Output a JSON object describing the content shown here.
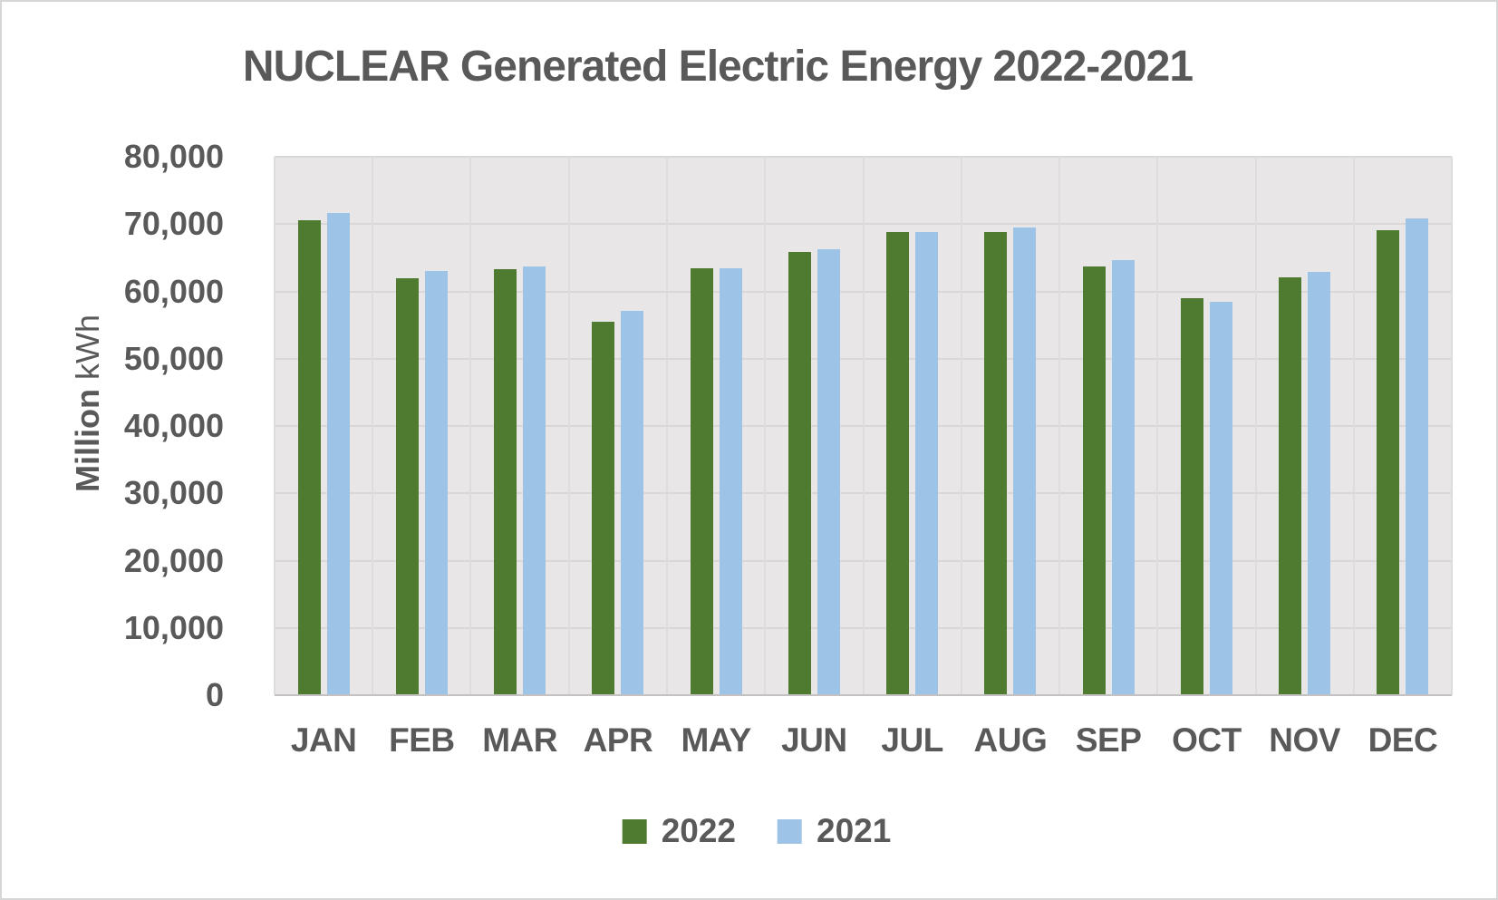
{
  "chart_data": {
    "type": "bar",
    "title": "NUCLEAR Generated Electric Energy 2022-2021",
    "ylabel_bold": "Million",
    "ylabel_regular": "kWh",
    "categories": [
      "JAN",
      "FEB",
      "MAR",
      "APR",
      "MAY",
      "JUN",
      "JUL",
      "AUG",
      "SEP",
      "OCT",
      "NOV",
      "DEC"
    ],
    "series": [
      {
        "name": "2022",
        "color": "#4e7b30",
        "values": [
          70600,
          61900,
          63300,
          55500,
          63500,
          65800,
          68800,
          68800,
          63700,
          59000,
          62100,
          69100
        ]
      },
      {
        "name": "2021",
        "color": "#9dc3e6",
        "values": [
          71700,
          63000,
          63700,
          57100,
          63400,
          66300,
          68800,
          69500,
          64600,
          58400,
          62900,
          70800
        ]
      }
    ],
    "ylim": [
      0,
      80000
    ],
    "ytick_step": 10000,
    "ytick_labels": [
      "80,000",
      "70,000",
      "60,000",
      "50,000",
      "40,000",
      "30,000",
      "20,000",
      "10,000",
      "0"
    ],
    "grid": true,
    "legend_position": "bottom",
    "colors": {
      "plot_background": "#e8e6e6",
      "gridline": "#d9d7d7",
      "vertical_gridline": "#dedcdc",
      "axis_line": "#c3c1c1",
      "text": "#595959"
    }
  }
}
